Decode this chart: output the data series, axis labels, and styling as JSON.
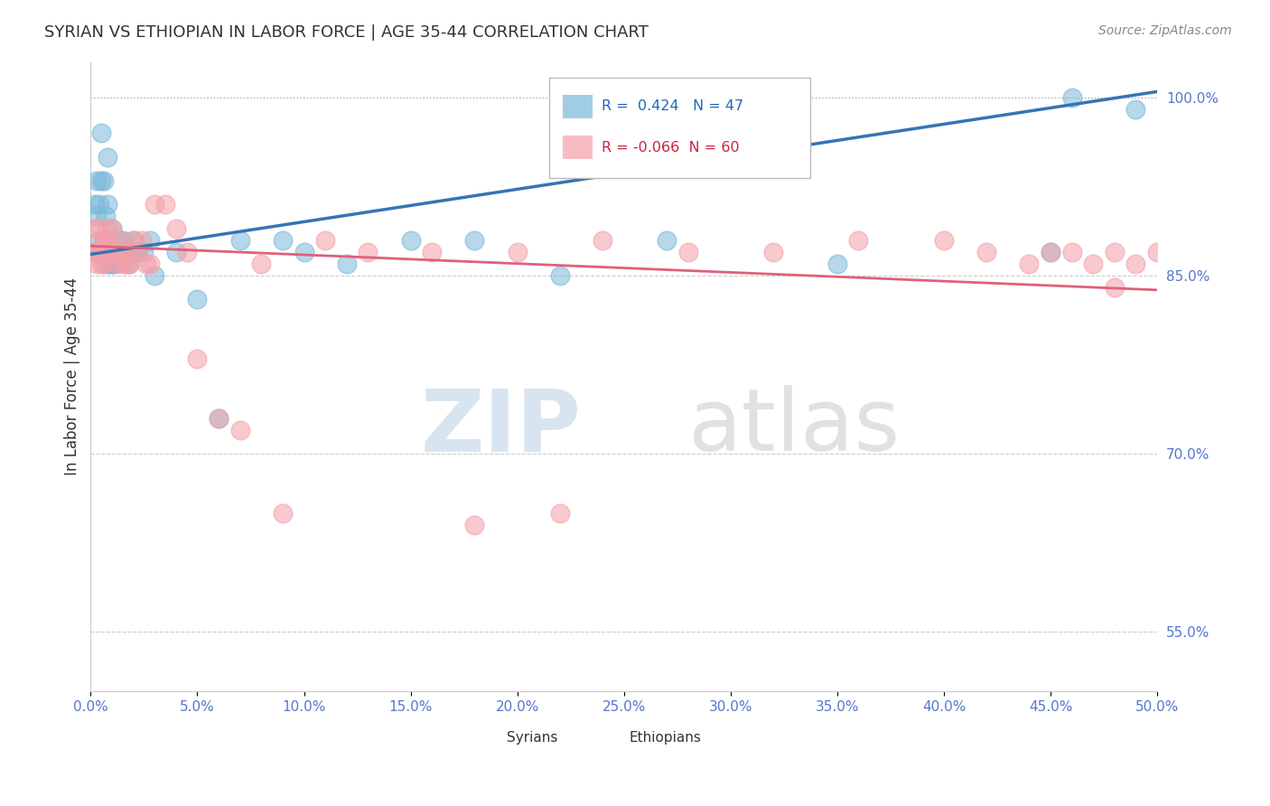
{
  "title": "SYRIAN VS ETHIOPIAN IN LABOR FORCE | AGE 35-44 CORRELATION CHART",
  "source": "Source: ZipAtlas.com",
  "ylabel": "In Labor Force | Age 35-44",
  "xlim": [
    0.0,
    0.5
  ],
  "ylim": [
    0.5,
    1.03
  ],
  "xticks": [
    0.0,
    0.05,
    0.1,
    0.15,
    0.2,
    0.25,
    0.3,
    0.35,
    0.4,
    0.45,
    0.5
  ],
  "yticks_right": [
    0.55,
    0.7,
    0.85,
    1.0
  ],
  "ytick_labels_right": [
    "55.0%",
    "70.0%",
    "85.0%",
    "100.0%"
  ],
  "grid_lines": [
    0.55,
    0.7,
    0.85
  ],
  "top_dotted_line": 1.0,
  "syrian_color": "#7ab8d9",
  "ethiopian_color": "#f4a0a8",
  "syrian_R": 0.424,
  "syrian_N": 47,
  "ethiopian_R": -0.066,
  "ethiopian_N": 60,
  "blue_line_color": "#3574b5",
  "pink_line_color": "#e0607a",
  "watermark_zip": "ZIP",
  "watermark_atlas": "atlas",
  "syrian_x": [
    0.001,
    0.002,
    0.003,
    0.003,
    0.004,
    0.004,
    0.005,
    0.005,
    0.006,
    0.006,
    0.007,
    0.007,
    0.008,
    0.008,
    0.009,
    0.009,
    0.01,
    0.01,
    0.011,
    0.012,
    0.013,
    0.014,
    0.015,
    0.016,
    0.017,
    0.018,
    0.019,
    0.02,
    0.022,
    0.025,
    0.028,
    0.03,
    0.04,
    0.05,
    0.06,
    0.07,
    0.09,
    0.1,
    0.12,
    0.15,
    0.18,
    0.22,
    0.27,
    0.35,
    0.45,
    0.46,
    0.49
  ],
  "syrian_y": [
    0.87,
    0.91,
    0.93,
    0.9,
    0.91,
    0.88,
    0.97,
    0.93,
    0.93,
    0.88,
    0.9,
    0.86,
    0.95,
    0.91,
    0.86,
    0.87,
    0.86,
    0.89,
    0.86,
    0.87,
    0.87,
    0.88,
    0.88,
    0.87,
    0.87,
    0.86,
    0.87,
    0.88,
    0.87,
    0.87,
    0.88,
    0.85,
    0.87,
    0.83,
    0.73,
    0.88,
    0.88,
    0.87,
    0.86,
    0.88,
    0.88,
    0.85,
    0.88,
    0.86,
    0.87,
    1.0,
    0.99
  ],
  "ethiopian_x": [
    0.001,
    0.002,
    0.003,
    0.003,
    0.004,
    0.004,
    0.005,
    0.005,
    0.006,
    0.006,
    0.007,
    0.007,
    0.008,
    0.008,
    0.009,
    0.01,
    0.01,
    0.011,
    0.012,
    0.013,
    0.014,
    0.015,
    0.016,
    0.017,
    0.018,
    0.019,
    0.02,
    0.022,
    0.024,
    0.026,
    0.028,
    0.03,
    0.035,
    0.04,
    0.045,
    0.05,
    0.06,
    0.07,
    0.08,
    0.09,
    0.11,
    0.13,
    0.16,
    0.2,
    0.24,
    0.28,
    0.32,
    0.36,
    0.4,
    0.42,
    0.44,
    0.46,
    0.47,
    0.48,
    0.49,
    0.5,
    0.48,
    0.45,
    0.22,
    0.18
  ],
  "ethiopian_y": [
    0.87,
    0.89,
    0.89,
    0.86,
    0.87,
    0.87,
    0.87,
    0.86,
    0.86,
    0.88,
    0.88,
    0.87,
    0.89,
    0.87,
    0.88,
    0.87,
    0.89,
    0.87,
    0.86,
    0.87,
    0.88,
    0.86,
    0.87,
    0.86,
    0.86,
    0.87,
    0.88,
    0.87,
    0.88,
    0.86,
    0.86,
    0.91,
    0.91,
    0.89,
    0.87,
    0.78,
    0.73,
    0.72,
    0.86,
    0.65,
    0.88,
    0.87,
    0.87,
    0.87,
    0.88,
    0.87,
    0.87,
    0.88,
    0.88,
    0.87,
    0.86,
    0.87,
    0.86,
    0.87,
    0.86,
    0.87,
    0.84,
    0.87,
    0.65,
    0.64
  ]
}
